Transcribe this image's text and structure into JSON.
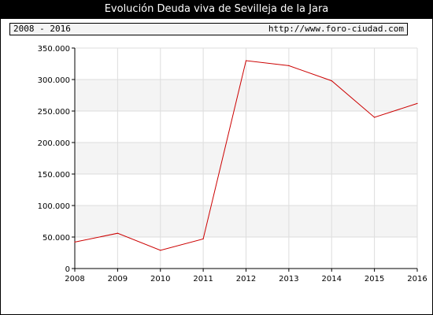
{
  "header": {
    "title": "Evolución Deuda viva de Sevilleja de la Jara",
    "range": "2008 - 2016",
    "url": "http://www.foro-ciudad.com"
  },
  "chart_data": {
    "type": "line",
    "title": "Evolución Deuda viva de Sevilleja de la Jara",
    "xlabel": "",
    "ylabel": "",
    "x": [
      "2008",
      "2009",
      "2010",
      "2011",
      "2012",
      "2013",
      "2014",
      "2015",
      "2016"
    ],
    "series": [
      {
        "values": [
          42000,
          56000,
          29000,
          47000,
          330000,
          322000,
          298000,
          240000,
          262000
        ],
        "color": "#cc0000"
      }
    ],
    "ylim": [
      0,
      350000
    ],
    "yticks": [
      0,
      50000,
      100000,
      150000,
      200000,
      250000,
      300000,
      350000
    ],
    "ytick_labels": [
      "0",
      "50.000",
      "100.000",
      "150.000",
      "200.000",
      "250.000",
      "300.000",
      "350.000"
    ],
    "grid": true
  }
}
